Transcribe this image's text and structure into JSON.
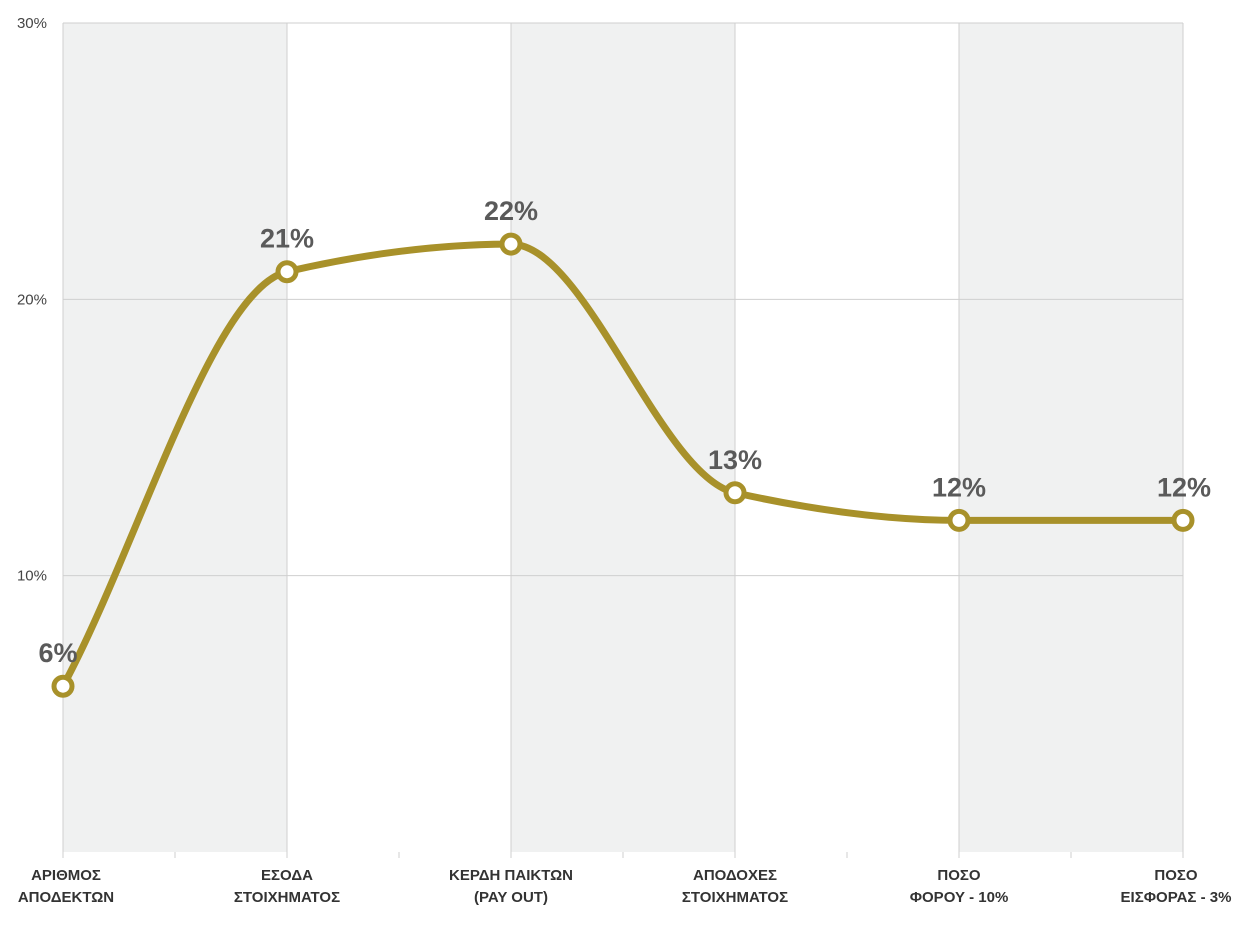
{
  "chart_data": {
    "type": "line",
    "categories": [
      [
        "ΑΡΙΘΜΟΣ",
        "ΑΠΟΔΕΚΤΩΝ"
      ],
      [
        "ΕΣΟΔΑ",
        "ΣΤΟΙΧΗΜΑΤΟΣ"
      ],
      [
        "ΚΕΡΔΗ ΠΑΙΚΤΩΝ",
        "(PAY OUT)"
      ],
      [
        "ΑΠΟΔΟΧΕΣ",
        "ΣΤΟΙΧΗΜΑΤΟΣ"
      ],
      [
        "ΠΟΣΟ",
        "ΦΟΡΟΥ - 10%"
      ],
      [
        "ΠΟΣΟ",
        "ΕΙΣΦΟΡΑΣ - 3%"
      ]
    ],
    "values": [
      6,
      21,
      22,
      13,
      12,
      12
    ],
    "data_labels": [
      "6%",
      "21%",
      "22%",
      "13%",
      "12%",
      "12%"
    ],
    "y_ticks": [
      {
        "value": 10,
        "label": "10%"
      },
      {
        "value": 20,
        "label": "20%"
      },
      {
        "value": 30,
        "label": "30%"
      }
    ],
    "ylim": [
      0,
      30
    ],
    "smooth": true,
    "grid": true,
    "alternating_bands": true,
    "colors": {
      "line": "#a8912a",
      "marker_fill": "#ffffff",
      "band": "#f0f1f1",
      "grid": "#cfcfcf",
      "data_label": "#5a5a5a"
    }
  }
}
